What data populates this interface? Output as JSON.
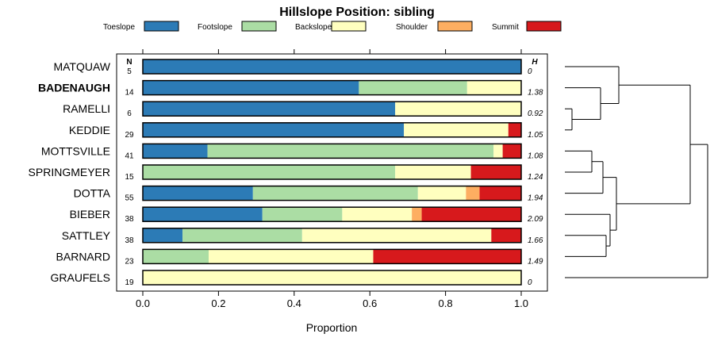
{
  "chart_data": {
    "type": "bar",
    "orientation": "horizontal",
    "stacked": true,
    "title": "Hillslope Position: sibling",
    "xlabel": "Proportion",
    "xlim": [
      0,
      1
    ],
    "x_ticks": [
      "0.0",
      "0.2",
      "0.4",
      "0.6",
      "0.8",
      "1.0"
    ],
    "n_header": "N",
    "h_header": "H",
    "legend_position": "top",
    "categories": [
      "MATQUAW",
      "BADENAUGH",
      "RAMELLI",
      "KEDDIE",
      "MOTTSVILLE",
      "SPRINGMEYER",
      "DOTTA",
      "BIEBER",
      "SATTLEY",
      "BARNARD",
      "GRAUFELS"
    ],
    "highlight": "BADENAUGH",
    "n": [
      "5",
      "14",
      "6",
      "29",
      "41",
      "15",
      "55",
      "38",
      "38",
      "23",
      "19"
    ],
    "h": [
      "0",
      "1.38",
      "0.92",
      "1.05",
      "1.08",
      "1.24",
      "1.94",
      "2.09",
      "1.66",
      "1.49",
      "0"
    ],
    "series": [
      {
        "name": "Toeslope",
        "color": "#2c7bb6",
        "values": [
          1.0,
          0.571,
          0.667,
          0.69,
          0.171,
          0.0,
          0.291,
          0.316,
          0.105,
          0.0,
          0.0
        ]
      },
      {
        "name": "Footslope",
        "color": "#abdda4",
        "values": [
          0.0,
          0.286,
          0.0,
          0.0,
          0.756,
          0.667,
          0.436,
          0.211,
          0.316,
          0.174,
          0.0
        ]
      },
      {
        "name": "Backslope",
        "color": "#ffffbf",
        "values": [
          0.0,
          0.143,
          0.333,
          0.276,
          0.024,
          0.2,
          0.127,
          0.184,
          0.5,
          0.435,
          1.0
        ]
      },
      {
        "name": "Shoulder",
        "color": "#fdae61",
        "values": [
          0.0,
          0.0,
          0.0,
          0.0,
          0.0,
          0.0,
          0.036,
          0.026,
          0.0,
          0.0,
          0.0
        ]
      },
      {
        "name": "Summit",
        "color": "#d7191c",
        "values": [
          0.0,
          0.0,
          0.0,
          0.034,
          0.049,
          0.133,
          0.109,
          0.263,
          0.079,
          0.391,
          0.0
        ]
      }
    ]
  }
}
